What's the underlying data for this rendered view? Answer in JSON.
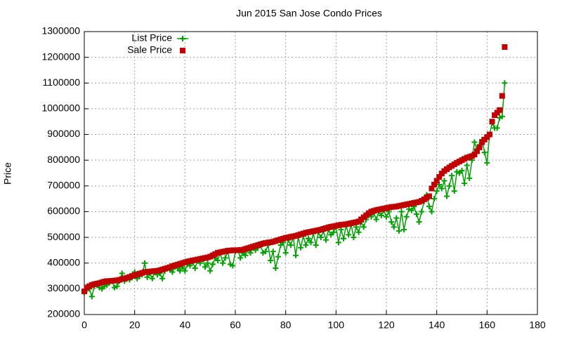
{
  "chart_data": {
    "type": "line",
    "title": "Jun 2015 San Jose Condo Prices",
    "y_label": "Price",
    "x": [
      0,
      1,
      2,
      3,
      4,
      5,
      6,
      7,
      8,
      9,
      10,
      11,
      12,
      13,
      14,
      15,
      16,
      17,
      18,
      19,
      20,
      21,
      22,
      23,
      24,
      25,
      26,
      27,
      28,
      29,
      30,
      31,
      32,
      33,
      34,
      35,
      36,
      37,
      38,
      39,
      40,
      41,
      42,
      43,
      44,
      45,
      46,
      47,
      48,
      49,
      50,
      51,
      52,
      53,
      54,
      55,
      56,
      57,
      58,
      59,
      60,
      61,
      62,
      63,
      64,
      65,
      66,
      67,
      68,
      69,
      70,
      71,
      72,
      73,
      74,
      75,
      76,
      77,
      78,
      79,
      80,
      81,
      82,
      83,
      84,
      85,
      86,
      87,
      88,
      89,
      90,
      91,
      92,
      93,
      94,
      95,
      96,
      97,
      98,
      99,
      100,
      101,
      102,
      103,
      104,
      105,
      106,
      107,
      108,
      109,
      110,
      111,
      112,
      113,
      114,
      115,
      116,
      117,
      118,
      119,
      120,
      121,
      122,
      123,
      124,
      125,
      126,
      127,
      128,
      129,
      130,
      131,
      132,
      133,
      134,
      135,
      136,
      137,
      138,
      139,
      140,
      141,
      142,
      143,
      144,
      145,
      146,
      147,
      148,
      149,
      150,
      151,
      152,
      153,
      154,
      155,
      156,
      157,
      158,
      159,
      160,
      161,
      162,
      163,
      164,
      165,
      166,
      167
    ],
    "series": [
      {
        "name": "List Price",
        "color": "#00a000",
        "line": true,
        "marker": "plus",
        "values": [
          285000,
          295000,
          300000,
          270000,
          310000,
          315000,
          305000,
          300000,
          310000,
          315000,
          325000,
          330000,
          305000,
          310000,
          330000,
          360000,
          330000,
          340000,
          335000,
          345000,
          365000,
          340000,
          350000,
          355000,
          400000,
          345000,
          360000,
          340000,
          365000,
          355000,
          360000,
          340000,
          370000,
          380000,
          375000,
          365000,
          385000,
          380000,
          370000,
          385000,
          370000,
          395000,
          390000,
          405000,
          380000,
          410000,
          400000,
          415000,
          385000,
          400000,
          370000,
          395000,
          420000,
          410000,
          440000,
          400000,
          420000,
          445000,
          395000,
          390000,
          445000,
          450000,
          420000,
          440000,
          430000,
          455000,
          440000,
          460000,
          450000,
          460000,
          470000,
          440000,
          445000,
          470000,
          410000,
          445000,
          380000,
          425000,
          470000,
          480000,
          440000,
          490000,
          470000,
          500000,
          430000,
          500000,
          460000,
          505000,
          470000,
          495000,
          480000,
          515000,
          470000,
          520000,
          500000,
          525000,
          490000,
          530000,
          510000,
          520000,
          540000,
          480000,
          530000,
          495000,
          545000,
          510000,
          550000,
          500000,
          540000,
          520000,
          560000,
          540000,
          570000,
          590000,
          580000,
          595000,
          570000,
          600000,
          585000,
          605000,
          580000,
          600000,
          560000,
          540000,
          575000,
          525000,
          600000,
          530000,
          580000,
          610000,
          605000,
          620000,
          590000,
          560000,
          600000,
          640000,
          665000,
          620000,
          600000,
          650000,
          680000,
          705000,
          690000,
          720000,
          660000,
          700000,
          740000,
          680000,
          755000,
          750000,
          760000,
          710000,
          780000,
          730000,
          800000,
          870000,
          840000,
          860000,
          880000,
          830000,
          790000,
          900000,
          945000,
          925000,
          925000,
          965000,
          970000,
          1100000
        ]
      },
      {
        "name": "Sale Price",
        "color": "#c00000",
        "line": false,
        "marker": "square",
        "values": [
          290000,
          305000,
          310000,
          315000,
          318000,
          320000,
          322000,
          325000,
          328000,
          330000,
          330000,
          331000,
          332000,
          333000,
          335000,
          338000,
          340000,
          343000,
          346000,
          350000,
          353000,
          356000,
          359000,
          362000,
          365000,
          366000,
          367000,
          368000,
          369000,
          370000,
          372000,
          375000,
          378000,
          381000,
          384000,
          388000,
          391000,
          394000,
          397000,
          400000,
          403000,
          406000,
          408000,
          410000,
          412000,
          414000,
          416000,
          418000,
          420000,
          422000,
          425000,
          430000,
          435000,
          440000,
          442000,
          444000,
          446000,
          448000,
          449000,
          450000,
          450000,
          450000,
          451000,
          452000,
          455000,
          458000,
          461000,
          464000,
          467000,
          470000,
          473000,
          476000,
          478000,
          480000,
          481000,
          483000,
          486000,
          489000,
          492000,
          495000,
          498000,
          500000,
          502000,
          504000,
          506000,
          509000,
          512000,
          515000,
          518000,
          520000,
          522000,
          524000,
          526000,
          528000,
          530000,
          533000,
          536000,
          539000,
          541000,
          543000,
          545000,
          547000,
          549000,
          550000,
          551000,
          553000,
          555000,
          557000,
          559000,
          562000,
          570000,
          578000,
          586000,
          594000,
          600000,
          603000,
          606000,
          608000,
          610000,
          612000,
          614000,
          616000,
          618000,
          619000,
          620000,
          622000,
          624000,
          626000,
          628000,
          630000,
          632000,
          634000,
          636000,
          638000,
          642000,
          648000,
          654000,
          660000,
          690000,
          705000,
          720000,
          735000,
          748000,
          758000,
          765000,
          772000,
          778000,
          784000,
          790000,
          795000,
          800000,
          805000,
          810000,
          813000,
          816000,
          822000,
          835000,
          850000,
          870000,
          880000,
          890000,
          900000,
          950000,
          975000,
          985000,
          995000,
          1050000,
          1240000
        ]
      }
    ],
    "xlim": [
      0,
      180
    ],
    "xticks": [
      0,
      20,
      40,
      60,
      80,
      100,
      120,
      140,
      160,
      180
    ],
    "ylim": [
      200000,
      1300000
    ],
    "yticks": [
      200000,
      300000,
      400000,
      500000,
      600000,
      700000,
      800000,
      900000,
      1000000,
      1100000,
      1200000,
      1300000
    ],
    "grid": true,
    "legend": "top-left"
  }
}
